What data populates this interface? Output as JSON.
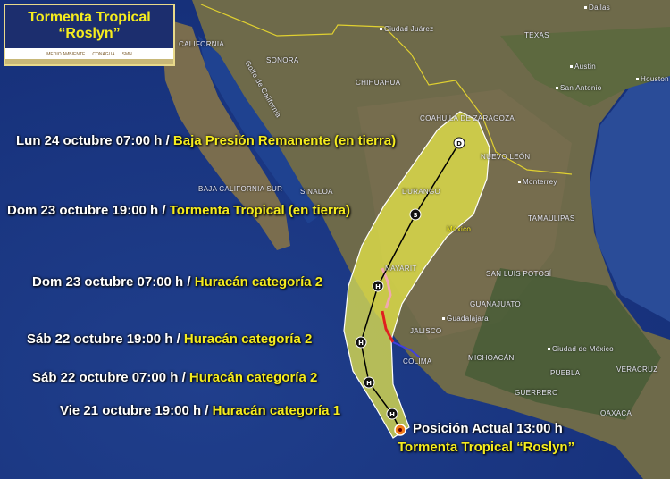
{
  "title_box": {
    "line1": "Tormenta Tropical",
    "line2": "“Roslyn”",
    "logos": [
      "MEDIO AMBIENTE",
      "CONAGUA",
      "SMN"
    ]
  },
  "forecast_points": [
    {
      "time": "Lun 24 octubre 07:00 h /",
      "status": "Baja Presión Remanente (en tierra)",
      "symbol": "D"
    },
    {
      "time": "Dom 23 octubre 19:00 h /",
      "status": "Tormenta Tropical (en tierra)",
      "symbol": "S"
    },
    {
      "time": "Dom 23 octubre 07:00 h /",
      "status": "Huracán categoría 2",
      "symbol": "H"
    },
    {
      "time": "Sáb 22 octubre 19:00 h /",
      "status": "Huracán categoría 2",
      "symbol": "H"
    },
    {
      "time": "Sáb 22 octubre 07:00 h /",
      "status": "Huracán categoría 2",
      "symbol": "H"
    },
    {
      "time": "Vie 21 octubre 19:00 h /",
      "status": "Huracán categoría 1",
      "symbol": "H"
    }
  ],
  "current_position": {
    "label": "Posición Actual 13:00 h",
    "name": "Tormenta Tropical “Roslyn”"
  },
  "places": [
    "CALIFORNIA",
    "SONORA",
    "CHIHUAHUA",
    "Ciudad Juárez",
    "TEXAS",
    "Dallas",
    "Austin",
    "San Antonio",
    "Houston",
    "COAHUILA DE ZARAGOZA",
    "NUEVO LEÓN",
    "Monterrey",
    "BAJA CALIFORNIA SUR",
    "SINALOA",
    "DURANGO",
    "México",
    "TAMAULIPAS",
    "NAYARIT",
    "SAN LUIS POTOSÍ",
    "GUANAJUATO",
    "Guadalajara",
    "JALISCO",
    "COLIMA",
    "MICHOACÁN",
    "Ciudad de México",
    "PUEBLA",
    "VERACRUZ",
    "GUERRERO",
    "OAXACA",
    "Golfo de California"
  ],
  "colors": {
    "cone": "#e8e84a",
    "label_accent": "#f5ec1e",
    "ocean": "#1d3f86",
    "warning_red": "#e02020",
    "watch_pink": "#f0a8b0",
    "watch_blue": "#4040e0"
  }
}
